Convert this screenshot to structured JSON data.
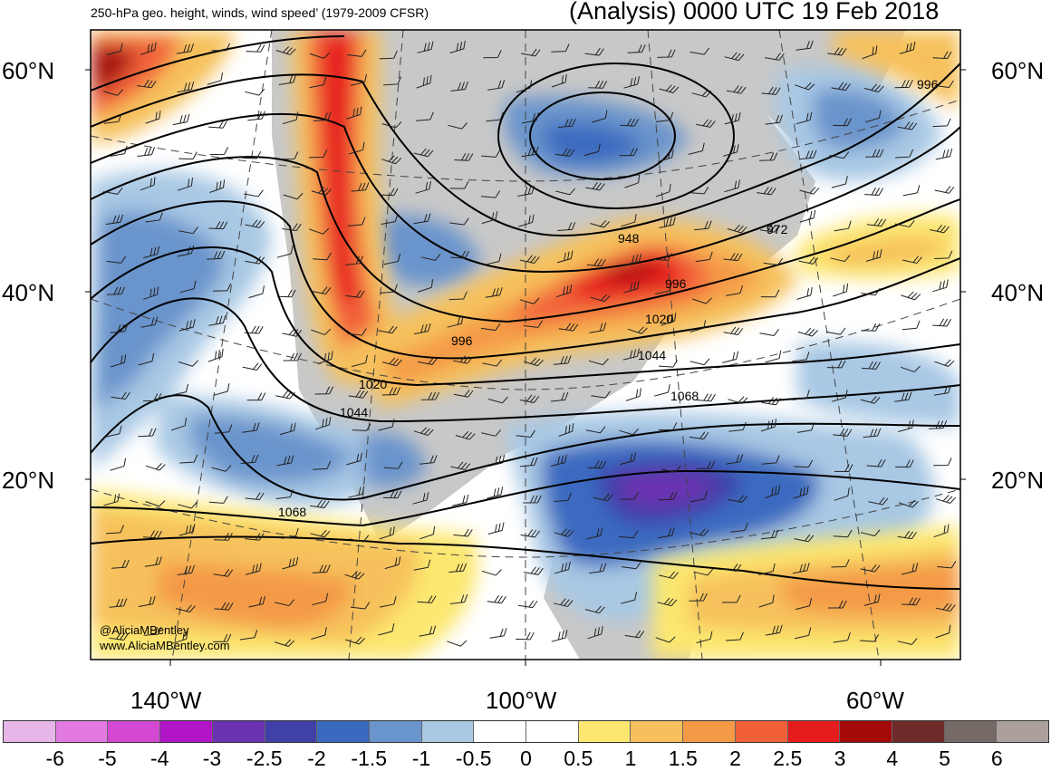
{
  "header": {
    "left_title": "250-hPa geo. height, winds, wind speed’ (1979-2009 CFSR)",
    "right_title": "(Analysis) 0000 UTC 19 Feb 2018"
  },
  "axes": {
    "lat_labels_left": [
      "60°N",
      "40°N",
      "20°N"
    ],
    "lat_labels_right": [
      "60°N",
      "40°N",
      "20°N"
    ],
    "lon_labels": [
      "140°W",
      "100°W",
      "60°W"
    ]
  },
  "contour_labels": [
    "996",
    "972",
    "948",
    "996",
    "1020",
    "1044",
    "1068",
    "996",
    "1020",
    "1044",
    "1068"
  ],
  "credits": [
    "@AliciaMBentley",
    "www.AliciaMBentley.com"
  ],
  "colorbar": {
    "colors": [
      "#e8b5e8",
      "#e27ae2",
      "#d448d4",
      "#b214c8",
      "#6a32b0",
      "#4040a8",
      "#3a6ac0",
      "#6a94cc",
      "#a8c8e4",
      "#ffffff",
      "#ffffff",
      "#fce770",
      "#f6c15c",
      "#f49a46",
      "#f2603a",
      "#e61b1b",
      "#a40a0a",
      "#6f2a2a",
      "#766a66",
      "#aca09c"
    ],
    "labels": [
      "-6",
      "-5",
      "-4",
      "-3",
      "-2.5",
      "-2",
      "-1.5",
      "-1",
      "-0.5",
      "0",
      "0.5",
      "1",
      "1.5",
      "2",
      "2.5",
      "3",
      "4",
      "5",
      "6"
    ]
  }
}
